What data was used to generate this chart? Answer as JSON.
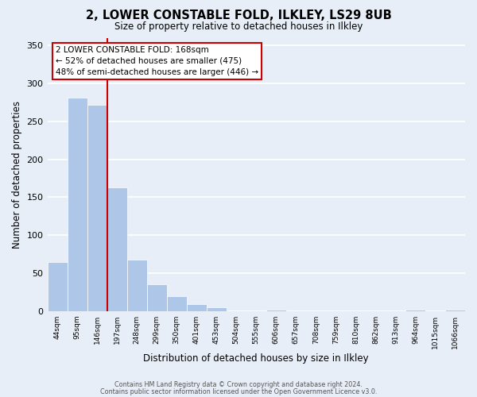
{
  "title": "2, LOWER CONSTABLE FOLD, ILKLEY, LS29 8UB",
  "subtitle": "Size of property relative to detached houses in Ilkley",
  "xlabel": "Distribution of detached houses by size in Ilkley",
  "ylabel": "Number of detached properties",
  "bin_labels": [
    "44sqm",
    "95sqm",
    "146sqm",
    "197sqm",
    "248sqm",
    "299sqm",
    "350sqm",
    "401sqm",
    "453sqm",
    "504sqm",
    "555sqm",
    "606sqm",
    "657sqm",
    "708sqm",
    "759sqm",
    "810sqm",
    "862sqm",
    "913sqm",
    "964sqm",
    "1015sqm",
    "1066sqm"
  ],
  "bar_heights": [
    65,
    281,
    272,
    163,
    68,
    35,
    20,
    9,
    5,
    0,
    0,
    2,
    0,
    0,
    0,
    0,
    0,
    0,
    2,
    0,
    2
  ],
  "bar_color": "#aec6e8",
  "property_bin_index": 2,
  "annotation_text": "2 LOWER CONSTABLE FOLD: 168sqm\n← 52% of detached houses are smaller (475)\n48% of semi-detached houses are larger (446) →",
  "annotation_box_color": "#ffffff",
  "annotation_box_edge": "#cc0000",
  "ylim": [
    0,
    360
  ],
  "yticks": [
    0,
    50,
    100,
    150,
    200,
    250,
    300,
    350
  ],
  "footer1": "Contains HM Land Registry data © Crown copyright and database right 2024.",
  "footer2": "Contains public sector information licensed under the Open Government Licence v3.0.",
  "background_color": "#e8eef7",
  "grid_color": "#ffffff",
  "vline_color": "#cc0000"
}
